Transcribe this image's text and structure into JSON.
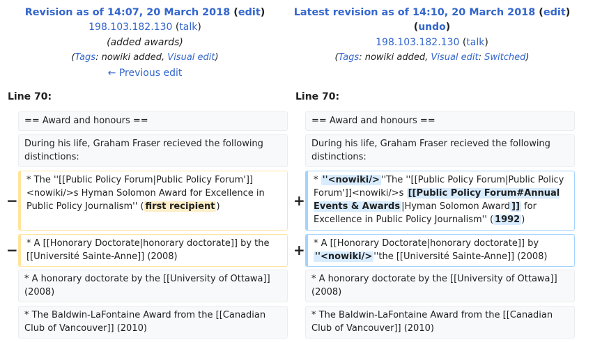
{
  "left": {
    "title_prefix": "Revision as of 14:07, 20 March 2018",
    "edit": "edit",
    "user": "198.103.182.130",
    "talk": "talk",
    "summary": "(added awards)",
    "tags_label": "Tags",
    "tags_text": ": nowiki added, ",
    "tag_link": "Visual edit",
    "prev": "← Previous edit",
    "line_no": "Line 70:"
  },
  "right": {
    "title_prefix": "Latest revision as of 14:10, 20 March 2018",
    "edit": "edit",
    "undo": "undo",
    "user": "198.103.182.130",
    "talk": "talk",
    "tags_label": "Tags",
    "tags_text": ": nowiki added, ",
    "tag_link1": "Visual edit",
    "tag_link2": "Switched",
    "line_no": "Line 70:"
  },
  "rows": {
    "r1": "== Award and honours ==",
    "r2": "During his life, Graham Fraser recieved the following distinctions:",
    "l3a": "* The ''[[Public Policy Forum|Public Policy Forum']] <nowiki/>s Hyman Solomon Award for Excellence in Public Policy Journalism'' (",
    "l3hl": "first recipient",
    "l3b": ")",
    "r3_pre": "* ",
    "r3hl1": "''<nowiki/>",
    "r3a": "''The ''[[Public Policy Forum|Public Policy Forum']]<nowiki/>s ",
    "r3hl2": "[[Public Policy Forum#Annual Events & Awards",
    "r3b": "|Hyman Solomon Award",
    "r3hl3": "]]",
    "r3c": " for Excellence in Public Policy Journalism'' (",
    "r3hl4": "1992",
    "r3d": ")",
    "l4": "* A [[Honorary Doctorate|honorary doctorate]] by the [[Université Sainte-Anne]] (2008)",
    "r4a": "* A [[Honorary Doctorate|honorary doctorate]] by ",
    "r4hl": "''<nowiki/>",
    "r4b": "''the [[Université Sainte-Anne]] (2008)",
    "r5": "* A honorary doctorate by the [[University of Ottawa]] (2008)",
    "r6": "* The Baldwin-LaFontaine Award from the [[Canadian Club of Vancouver]] (2010)"
  },
  "markers": {
    "minus": "−",
    "plus": "+"
  }
}
